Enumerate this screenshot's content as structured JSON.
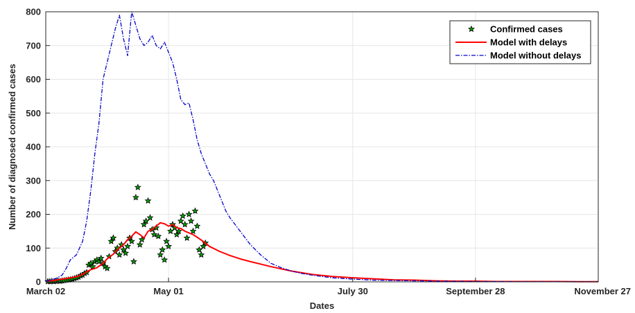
{
  "chart_data": {
    "type": "line",
    "title": "",
    "xlabel": "Dates",
    "ylabel": "Number of diagnosed confirmed cases",
    "xlim": [
      0,
      270
    ],
    "ylim": [
      0,
      800
    ],
    "grid": true,
    "legend_position": "top-right",
    "x_ticks": [
      {
        "day": 0,
        "label": "March 02"
      },
      {
        "day": 60,
        "label": "May 01"
      },
      {
        "day": 150,
        "label": "July 30"
      },
      {
        "day": 210,
        "label": "September 28"
      },
      {
        "day": 270,
        "label": "November 27"
      }
    ],
    "y_ticks": [
      0,
      100,
      200,
      300,
      400,
      500,
      600,
      700,
      800
    ],
    "series": [
      {
        "name": "Confirmed cases",
        "style": "markers",
        "color": "#00a000",
        "marker_edge": "#000000",
        "x": [
          1,
          2,
          3,
          4,
          5,
          6,
          7,
          8,
          9,
          10,
          11,
          12,
          13,
          14,
          15,
          16,
          17,
          18,
          19,
          20,
          21,
          22,
          23,
          24,
          25,
          26,
          27,
          28,
          29,
          30,
          31,
          32,
          33,
          34,
          35,
          36,
          37,
          38,
          39,
          40,
          41,
          42,
          43,
          44,
          45,
          46,
          47,
          48,
          49,
          50,
          51,
          52,
          53,
          54,
          55,
          56,
          57,
          58,
          59,
          60,
          61,
          62,
          63,
          64,
          65,
          66,
          67,
          68,
          69,
          70,
          71,
          72,
          73,
          74,
          75,
          76,
          77,
          78
        ],
        "y": [
          1,
          1,
          2,
          1,
          2,
          3,
          2,
          3,
          4,
          5,
          6,
          7,
          8,
          10,
          12,
          14,
          18,
          20,
          25,
          28,
          50,
          55,
          45,
          60,
          65,
          60,
          70,
          55,
          45,
          40,
          75,
          120,
          130,
          90,
          100,
          80,
          110,
          95,
          85,
          105,
          130,
          120,
          60,
          250,
          280,
          110,
          125,
          170,
          180,
          240,
          190,
          155,
          140,
          160,
          135,
          80,
          95,
          65,
          120,
          105,
          150,
          170,
          160,
          140,
          150,
          180,
          195,
          170,
          130,
          200,
          180,
          150,
          210,
          165,
          95,
          80,
          105,
          115
        ]
      },
      {
        "name": "Model with delays",
        "style": "solid",
        "color": "#ff0000",
        "x": [
          0,
          5,
          10,
          15,
          18,
          20,
          22,
          25,
          28,
          30,
          33,
          35,
          38,
          40,
          42,
          44,
          46,
          48,
          50,
          52,
          54,
          56,
          58,
          60,
          62,
          64,
          66,
          68,
          70,
          72,
          75,
          78,
          80,
          85,
          90,
          95,
          100,
          110,
          120,
          130,
          140,
          150,
          160,
          170,
          180,
          190,
          200,
          210,
          220,
          230,
          240,
          250,
          260,
          270
        ],
        "y": [
          1,
          5,
          10,
          15,
          22,
          30,
          36,
          42,
          55,
          68,
          82,
          95,
          110,
          125,
          135,
          148,
          140,
          130,
          150,
          155,
          165,
          175,
          172,
          165,
          170,
          160,
          158,
          150,
          145,
          140,
          128,
          115,
          105,
          90,
          78,
          68,
          60,
          45,
          32,
          22,
          16,
          12,
          9,
          6,
          5,
          3,
          2,
          2,
          1,
          1,
          1,
          1,
          0.5,
          0.5
        ]
      },
      {
        "name": "Model without delays",
        "style": "dashdot",
        "color": "#0000cc",
        "x": [
          0,
          5,
          8,
          10,
          12,
          15,
          18,
          20,
          22,
          24,
          26,
          28,
          30,
          32,
          34,
          36,
          38,
          40,
          42,
          44,
          46,
          48,
          50,
          52,
          54,
          56,
          58,
          60,
          62,
          64,
          66,
          68,
          70,
          72,
          74,
          76,
          78,
          80,
          82,
          84,
          86,
          88,
          90,
          95,
          100,
          105,
          110,
          115,
          120,
          125,
          130,
          140,
          150,
          160,
          170,
          180,
          190,
          200,
          210,
          220,
          230,
          240,
          250,
          260,
          270
        ],
        "y": [
          2,
          10,
          20,
          40,
          65,
          80,
          120,
          180,
          270,
          380,
          470,
          600,
          650,
          700,
          750,
          790,
          720,
          670,
          800,
          760,
          720,
          700,
          710,
          730,
          700,
          690,
          710,
          680,
          650,
          600,
          540,
          525,
          530,
          480,
          420,
          380,
          350,
          320,
          300,
          270,
          240,
          210,
          190,
          150,
          110,
          80,
          55,
          42,
          32,
          25,
          20,
          12,
          8,
          5,
          4,
          3,
          2,
          1.5,
          1,
          1,
          0.5,
          0.5,
          0.5,
          0.5,
          0.5
        ]
      }
    ]
  }
}
